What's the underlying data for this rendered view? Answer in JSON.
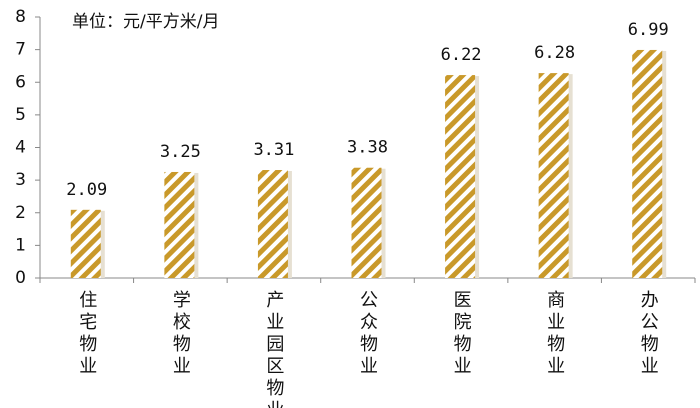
{
  "chart_data": {
    "type": "bar",
    "unit_label": "单位：元/平方米/月",
    "categories": [
      "住宅物业",
      "学校物业",
      "产业园区物业",
      "公众物业",
      "医院物业",
      "商业物业",
      "办公物业"
    ],
    "values": [
      2.09,
      3.25,
      3.31,
      3.38,
      6.22,
      6.28,
      6.99
    ],
    "color": "#c9992a",
    "ylim": [
      0,
      8
    ],
    "yticks": [
      0,
      1,
      2,
      3,
      4,
      5,
      6,
      7,
      8
    ],
    "grid": false
  }
}
